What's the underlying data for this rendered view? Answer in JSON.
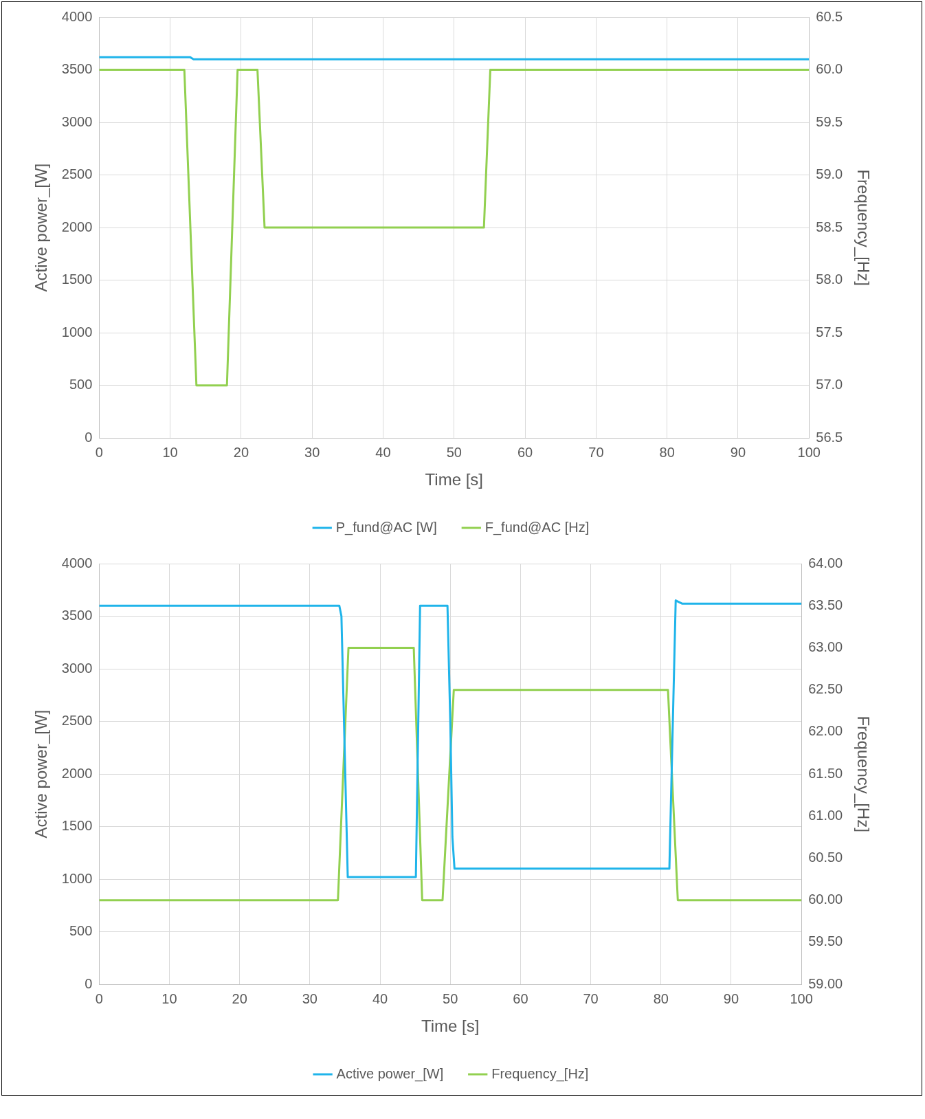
{
  "chart_data": [
    {
      "type": "line",
      "xlabel": "Time [s]",
      "ylabel": "Active power_[W]",
      "y2label": "Frequency_[Hz]",
      "grid": true,
      "legend": "bottom",
      "xlim": [
        0,
        100
      ],
      "xticks": [
        0,
        10,
        20,
        30,
        40,
        50,
        60,
        70,
        80,
        90,
        100
      ],
      "ylim": [
        0,
        4000
      ],
      "yticks": [
        0,
        500,
        1000,
        1500,
        2000,
        2500,
        3000,
        3500,
        4000
      ],
      "y2lim": [
        56.5,
        60.5
      ],
      "y2ticks": [
        {
          "value": 56.5,
          "label": "56.5"
        },
        {
          "value": 57,
          "label": "57.0"
        },
        {
          "value": 57.5,
          "label": "57.5"
        },
        {
          "value": 58,
          "label": "58.0"
        },
        {
          "value": 58.5,
          "label": "58.5"
        },
        {
          "value": 59,
          "label": "59.0"
        },
        {
          "value": 59.5,
          "label": "59.5"
        },
        {
          "value": 60,
          "label": "60.0"
        },
        {
          "value": 60.5,
          "label": "60.5"
        }
      ],
      "series": [
        {
          "name": "P_fund@AC [W]",
          "color": "#1fb4ea",
          "x": [
            0,
            12.8,
            13.3,
            100
          ],
          "values": [
            3620,
            3620,
            3600,
            3600
          ]
        },
        {
          "name": "F_fund@AC [Hz]",
          "color": "#92d050",
          "axis": "y2",
          "x": [
            0,
            12,
            13.7,
            18,
            19.5,
            22.3,
            23.3,
            54.2,
            55.1,
            100
          ],
          "values": [
            60,
            60,
            57,
            57,
            60,
            60,
            58.5,
            58.5,
            60,
            60
          ]
        }
      ]
    },
    {
      "type": "line",
      "xlabel": "Time [s]",
      "ylabel": "Active power_[W]",
      "y2label": "Frequency_[Hz]",
      "grid": true,
      "legend": "bottom",
      "xlim": [
        0,
        100
      ],
      "xticks": [
        0,
        10,
        20,
        30,
        40,
        50,
        60,
        70,
        80,
        90,
        100
      ],
      "ylim": [
        0,
        4000
      ],
      "yticks": [
        0,
        500,
        1000,
        1500,
        2000,
        2500,
        3000,
        3500,
        4000
      ],
      "y2lim": [
        59,
        64
      ],
      "y2ticks": [
        {
          "value": 59,
          "label": "59.00"
        },
        {
          "value": 59.5,
          "label": "59.50"
        },
        {
          "value": 60,
          "label": "60.00"
        },
        {
          "value": 60.5,
          "label": "60.50"
        },
        {
          "value": 61,
          "label": "61.00"
        },
        {
          "value": 61.5,
          "label": "61.50"
        },
        {
          "value": 62,
          "label": "62.00"
        },
        {
          "value": 62.5,
          "label": "62.50"
        },
        {
          "value": 63,
          "label": "63.00"
        },
        {
          "value": 63.5,
          "label": "63.50"
        },
        {
          "value": 64,
          "label": "64.00"
        }
      ],
      "series": [
        {
          "name": "Active power_[W]",
          "color": "#1fb4ea",
          "x": [
            0,
            34.2,
            34.5,
            35.4,
            45.1,
            45.7,
            49.6,
            50,
            50.3,
            50.6,
            81.2,
            82.1,
            83,
            100
          ],
          "values": [
            3600,
            3600,
            3500,
            1020,
            1020,
            3600,
            3600,
            2500,
            1400,
            1100,
            1100,
            3650,
            3620,
            3620
          ]
        },
        {
          "name": "Frequency_[Hz]",
          "color": "#92d050",
          "axis": "y2",
          "x": [
            0,
            34,
            35.5,
            44.8,
            46,
            48.9,
            50.5,
            81,
            82.4,
            100
          ],
          "values": [
            60,
            60,
            63,
            63,
            60,
            60,
            62.5,
            62.5,
            60,
            60
          ]
        }
      ]
    }
  ]
}
